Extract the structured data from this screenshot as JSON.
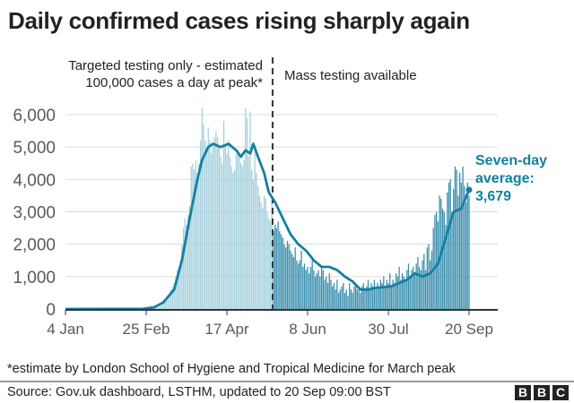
{
  "title": "Daily confirmed cases rising sharply again",
  "annotations": {
    "before_line1": "Targeted testing only - estimated",
    "before_line2": "100,000 cases a day at peak*",
    "after": "Mass testing available"
  },
  "footnote": "*estimate by London School of Hygiene and Tropical Medicine for March peak",
  "source": "Source: Gov.uk dashboard, LSTHM, updated to 20 Sep 09:00 BST",
  "logo": [
    "B",
    "B",
    "C"
  ],
  "chart_data": {
    "type": "bar",
    "title": "Daily confirmed cases rising sharply again",
    "xlabel": "",
    "ylabel": "",
    "x_start": "4 Jan",
    "x_end": "20 Sep",
    "x_ticks": [
      {
        "label": "4 Jan",
        "day": 0
      },
      {
        "label": "25 Feb",
        "day": 52
      },
      {
        "label": "17 Apr",
        "day": 104
      },
      {
        "label": "8 Jun",
        "day": 156
      },
      {
        "label": "30 Jul",
        "day": 208
      },
      {
        "label": "20 Sep",
        "day": 260
      }
    ],
    "y_ticks": [
      "0",
      "1,000",
      "2,000",
      "3,000",
      "4,000",
      "5,000",
      "6,000"
    ],
    "y_tick_values": [
      0,
      1000,
      2000,
      3000,
      4000,
      5000,
      6000
    ],
    "ylim": [
      0,
      6000
    ],
    "grid": true,
    "mass_testing_day": 134,
    "colors": {
      "before": "#a6d0de",
      "after": "#3b8fae",
      "average": "#1380a1",
      "grid": "#dcdcdc",
      "axis": "#333333"
    },
    "daily_cases": [
      0,
      0,
      0,
      0,
      0,
      0,
      0,
      0,
      0,
      0,
      0,
      0,
      0,
      0,
      0,
      0,
      0,
      0,
      0,
      0,
      0,
      0,
      0,
      0,
      0,
      0,
      0,
      0,
      0,
      0,
      0,
      0,
      0,
      0,
      0,
      0,
      0,
      0,
      0,
      0,
      0,
      0,
      0,
      0,
      0,
      0,
      0,
      0,
      0,
      0,
      0,
      1,
      2,
      3,
      5,
      10,
      15,
      20,
      30,
      40,
      60,
      80,
      120,
      160,
      200,
      250,
      300,
      400,
      600,
      700,
      800,
      1000,
      1200,
      1300,
      1500,
      2000,
      2500,
      2800,
      2600,
      2900,
      3200,
      4400,
      4500,
      4300,
      4600,
      4200,
      4500,
      5200,
      6200,
      5700,
      5200,
      4900,
      5600,
      5200,
      4800,
      5100,
      5300,
      5500,
      5300,
      5000,
      4700,
      4500,
      5800,
      5100,
      4800,
      5200,
      4700,
      4400,
      4200,
      4300,
      4800,
      4900,
      4700,
      4500,
      4400,
      4600,
      6200,
      5900,
      4700,
      6100,
      4300,
      4000,
      4800,
      4200,
      3800,
      3500,
      3300,
      3100,
      3500,
      3400,
      3000,
      2800,
      2700,
      3400,
      2400,
      2600,
      2500,
      2700,
      2400,
      2300,
      2200,
      2000,
      1900,
      2100,
      2000,
      1800,
      1700,
      1600,
      1900,
      1500,
      1400,
      1500,
      1800,
      1300,
      1400,
      1200,
      1300,
      1100,
      1300,
      1500,
      1200,
      1000,
      1100,
      1200,
      1000,
      1300,
      1200,
      900,
      1000,
      800,
      1100,
      900,
      700,
      800,
      600,
      900,
      500,
      600,
      700,
      800,
      500,
      600,
      400,
      800,
      600,
      500,
      700,
      800,
      600,
      700,
      500,
      700,
      800,
      600,
      700,
      900,
      600,
      800,
      700,
      900,
      600,
      800,
      700,
      900,
      800,
      1000,
      700,
      900,
      800,
      1100,
      700,
      900,
      800,
      1100,
      1000,
      1300,
      900,
      1100,
      1000,
      900,
      1200,
      1400,
      1000,
      1200,
      1300,
      1100,
      1400,
      1600,
      1300,
      1200,
      1500,
      1700,
      1200,
      1900,
      2000,
      1500,
      1800,
      2500,
      2900,
      3000,
      2700,
      3500,
      3400,
      3100,
      3000,
      2600,
      3600,
      3900,
      4000,
      3000,
      3700,
      4400,
      4300,
      3500,
      4200,
      3900,
      4400,
      3800,
      3300,
      3900,
      3500
    ],
    "seven_day_average": [
      [
        0,
        0
      ],
      [
        50,
        5
      ],
      [
        57,
        50
      ],
      [
        63,
        200
      ],
      [
        70,
        600
      ],
      [
        75,
        1500
      ],
      [
        80,
        2800
      ],
      [
        85,
        4000
      ],
      [
        88,
        4600
      ],
      [
        92,
        5000
      ],
      [
        95,
        5100
      ],
      [
        100,
        5000
      ],
      [
        105,
        5100
      ],
      [
        110,
        4900
      ],
      [
        113,
        4700
      ],
      [
        116,
        4900
      ],
      [
        119,
        4800
      ],
      [
        121,
        5100
      ],
      [
        124,
        4700
      ],
      [
        128,
        4200
      ],
      [
        131,
        3600
      ],
      [
        135,
        3300
      ],
      [
        140,
        2800
      ],
      [
        145,
        2300
      ],
      [
        150,
        2000
      ],
      [
        155,
        1800
      ],
      [
        160,
        1500
      ],
      [
        165,
        1300
      ],
      [
        170,
        1300
      ],
      [
        175,
        1200
      ],
      [
        180,
        1000
      ],
      [
        185,
        850
      ],
      [
        190,
        600
      ],
      [
        195,
        600
      ],
      [
        200,
        650
      ],
      [
        210,
        700
      ],
      [
        215,
        800
      ],
      [
        220,
        900
      ],
      [
        225,
        1100
      ],
      [
        230,
        1000
      ],
      [
        235,
        1100
      ],
      [
        240,
        1400
      ],
      [
        245,
        2200
      ],
      [
        250,
        3000
      ],
      [
        255,
        3100
      ],
      [
        260,
        3679
      ]
    ],
    "average_label": [
      "Seven-day",
      "average:",
      "3,679"
    ],
    "latest_average": 3679
  }
}
